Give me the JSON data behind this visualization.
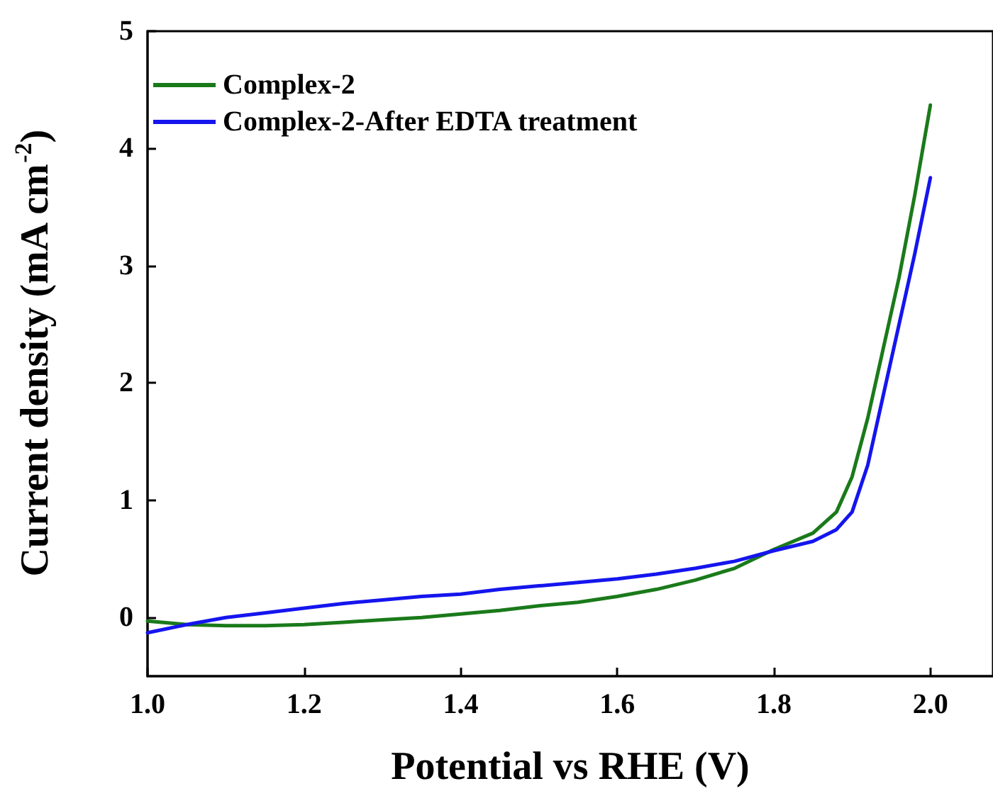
{
  "chart_data": {
    "type": "line",
    "xlabel": "Potential vs RHE (V)",
    "ylabel": "Current density (mA cm$^{-2}$)",
    "xlim": [
      1.0,
      2.08
    ],
    "xticks": [
      {
        "value": 1.0,
        "label": "1.0"
      },
      {
        "value": 1.2,
        "label": "1.2"
      },
      {
        "value": 1.4,
        "label": "1.4"
      },
      {
        "value": 1.6,
        "label": "1.6"
      },
      {
        "value": 1.8,
        "label": "1.8"
      },
      {
        "value": 2.0,
        "label": "2.0"
      }
    ],
    "ylim": [
      -0.5,
      5
    ],
    "yticks": [
      0,
      1,
      2,
      3,
      4,
      5
    ],
    "grid": false,
    "legend": "top left",
    "marker": "none",
    "line_style": "solid",
    "series": [
      {
        "name": "Complex-2",
        "color": "#1a7a1a",
        "x": [
          1.0,
          1.05,
          1.1,
          1.15,
          1.2,
          1.25,
          1.3,
          1.35,
          1.4,
          1.45,
          1.5,
          1.55,
          1.6,
          1.65,
          1.7,
          1.75,
          1.8,
          1.85,
          1.88,
          1.9,
          1.92,
          1.94,
          1.96,
          1.98,
          2.0
        ],
        "values": [
          -0.03,
          -0.06,
          -0.07,
          -0.07,
          -0.06,
          -0.04,
          -0.02,
          0.0,
          0.03,
          0.06,
          0.1,
          0.13,
          0.18,
          0.24,
          0.32,
          0.42,
          0.58,
          0.72,
          0.9,
          1.2,
          1.7,
          2.3,
          2.9,
          3.6,
          4.37
        ]
      },
      {
        "name": "Complex-2-After EDTA treatment",
        "color": "#1515ee",
        "x": [
          1.0,
          1.05,
          1.1,
          1.15,
          1.2,
          1.25,
          1.3,
          1.35,
          1.4,
          1.45,
          1.5,
          1.55,
          1.6,
          1.65,
          1.7,
          1.75,
          1.8,
          1.85,
          1.88,
          1.9,
          1.92,
          1.94,
          1.96,
          1.98,
          2.0
        ],
        "values": [
          -0.13,
          -0.06,
          0.0,
          0.04,
          0.08,
          0.12,
          0.15,
          0.18,
          0.2,
          0.24,
          0.27,
          0.3,
          0.33,
          0.37,
          0.42,
          0.48,
          0.57,
          0.65,
          0.75,
          0.9,
          1.3,
          1.9,
          2.5,
          3.1,
          3.75
        ]
      }
    ]
  }
}
